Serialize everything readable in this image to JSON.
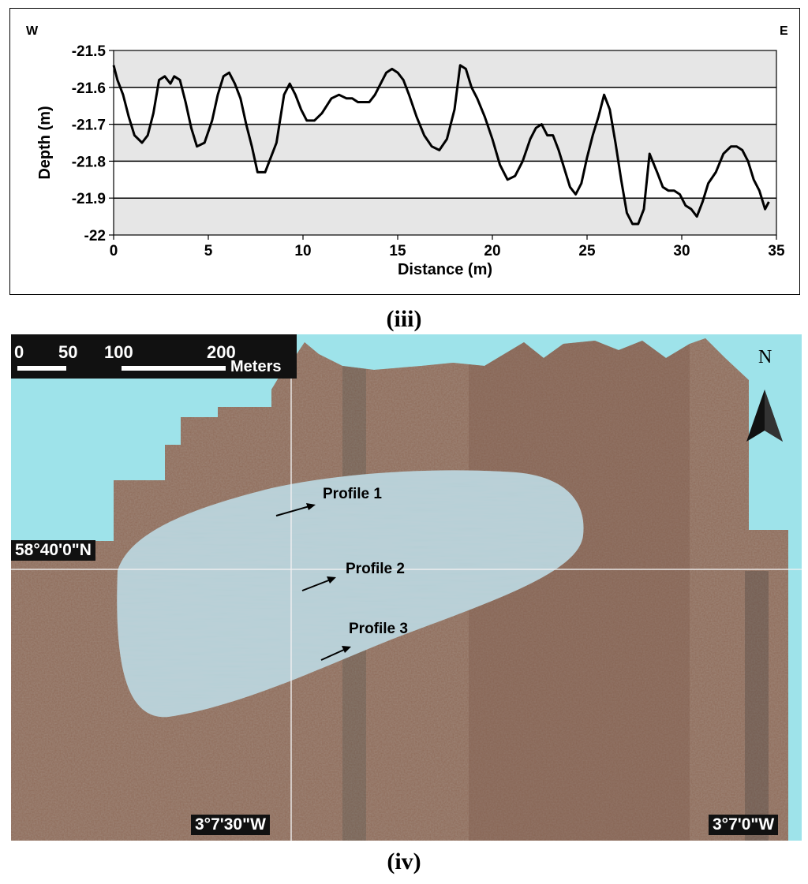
{
  "panels": {
    "top_label": "(iii)",
    "bottom_label": "(iv)"
  },
  "chart_data": {
    "type": "line",
    "direction_labels": {
      "left": "W",
      "right": "E"
    },
    "xlabel": "Distance (m)",
    "ylabel": "Depth (m)",
    "xlim": [
      0,
      35
    ],
    "ylim": [
      -22,
      -21.5
    ],
    "x_ticks": [
      0,
      5,
      10,
      15,
      20,
      25,
      30,
      35
    ],
    "y_ticks": [
      -21.5,
      -21.6,
      -21.7,
      -21.8,
      -21.9,
      -22
    ],
    "y_tick_labels": [
      "-21.5",
      "-21.6",
      "-21.7",
      "-21.8",
      "-21.9",
      "-22"
    ],
    "grid": "horizontal",
    "band_color": "#e6e6e6",
    "line_color": "#000000",
    "series": [
      {
        "x": [
          0,
          0.2,
          0.5,
          0.8,
          1.1,
          1.5,
          1.8,
          2.1,
          2.4,
          2.7,
          3.0,
          3.2,
          3.5,
          3.8,
          4.1,
          4.4,
          4.8,
          5.2,
          5.5,
          5.8,
          6.1,
          6.4,
          6.7,
          7.0,
          7.3,
          7.6,
          8.0,
          8.3,
          8.6,
          9.0,
          9.3,
          9.6,
          9.9,
          10.2,
          10.6,
          11.0,
          11.5,
          11.9,
          12.3,
          12.6,
          12.9,
          13.2,
          13.5,
          13.8,
          14.1,
          14.4,
          14.7,
          15.0,
          15.3,
          15.6,
          16.0,
          16.4,
          16.8,
          17.2,
          17.6,
          18.0,
          18.3,
          18.6,
          18.9,
          19.2,
          19.6,
          20.0,
          20.4,
          20.8,
          21.2,
          21.6,
          22.0,
          22.3,
          22.6,
          22.9,
          23.2,
          23.5,
          23.8,
          24.1,
          24.4,
          24.7,
          25.0,
          25.3,
          25.6,
          25.9,
          26.2,
          26.5,
          26.8,
          27.1,
          27.4,
          27.7,
          28.0,
          28.3,
          28.7,
          29.0,
          29.3,
          29.6,
          29.9,
          30.2,
          30.5,
          30.8,
          31.1,
          31.4,
          31.8,
          32.2,
          32.6,
          32.9,
          33.2,
          33.5,
          33.8,
          34.1,
          34.4,
          34.6
        ],
        "y": [
          -21.54,
          -21.58,
          -21.62,
          -21.68,
          -21.73,
          -21.75,
          -21.73,
          -21.67,
          -21.58,
          -21.57,
          -21.59,
          -21.57,
          -21.58,
          -21.64,
          -21.71,
          -21.76,
          -21.75,
          -21.69,
          -21.62,
          -21.57,
          -21.56,
          -21.59,
          -21.63,
          -21.7,
          -21.76,
          -21.83,
          -21.83,
          -21.79,
          -21.75,
          -21.62,
          -21.59,
          -21.62,
          -21.66,
          -21.69,
          -21.69,
          -21.67,
          -21.63,
          -21.62,
          -21.63,
          -21.63,
          -21.64,
          -21.64,
          -21.64,
          -21.62,
          -21.59,
          -21.56,
          -21.55,
          -21.56,
          -21.58,
          -21.62,
          -21.68,
          -21.73,
          -21.76,
          -21.77,
          -21.74,
          -21.66,
          -21.54,
          -21.55,
          -21.6,
          -21.63,
          -21.68,
          -21.74,
          -21.81,
          -21.85,
          -21.84,
          -21.8,
          -21.74,
          -21.71,
          -21.7,
          -21.73,
          -21.73,
          -21.77,
          -21.82,
          -21.87,
          -21.89,
          -21.86,
          -21.79,
          -21.73,
          -21.68,
          -21.62,
          -21.66,
          -21.75,
          -21.85,
          -21.94,
          -21.97,
          -21.97,
          -21.93,
          -21.78,
          -21.83,
          -21.87,
          -21.88,
          -21.88,
          -21.89,
          -21.92,
          -21.93,
          -21.95,
          -21.91,
          -21.86,
          -21.83,
          -21.78,
          -21.76,
          -21.76,
          -21.77,
          -21.8,
          -21.85,
          -21.88,
          -21.93,
          -21.91
        ]
      }
    ]
  },
  "map": {
    "scale_bar": {
      "tick_labels": [
        "0",
        "50",
        "100",
        "200"
      ],
      "unit": "Meters"
    },
    "north_label": "N",
    "profiles": [
      "Profile 1",
      "Profile 2",
      "Profile 3"
    ],
    "latitude_label": "58°40'0\"N",
    "longitude_labels": [
      "3°7'30\"W",
      "3°7'0\"W"
    ],
    "colors": {
      "water": "#9ee3ea",
      "seabed": "#8e6a58",
      "sand_body": "#b6cfd6"
    }
  }
}
